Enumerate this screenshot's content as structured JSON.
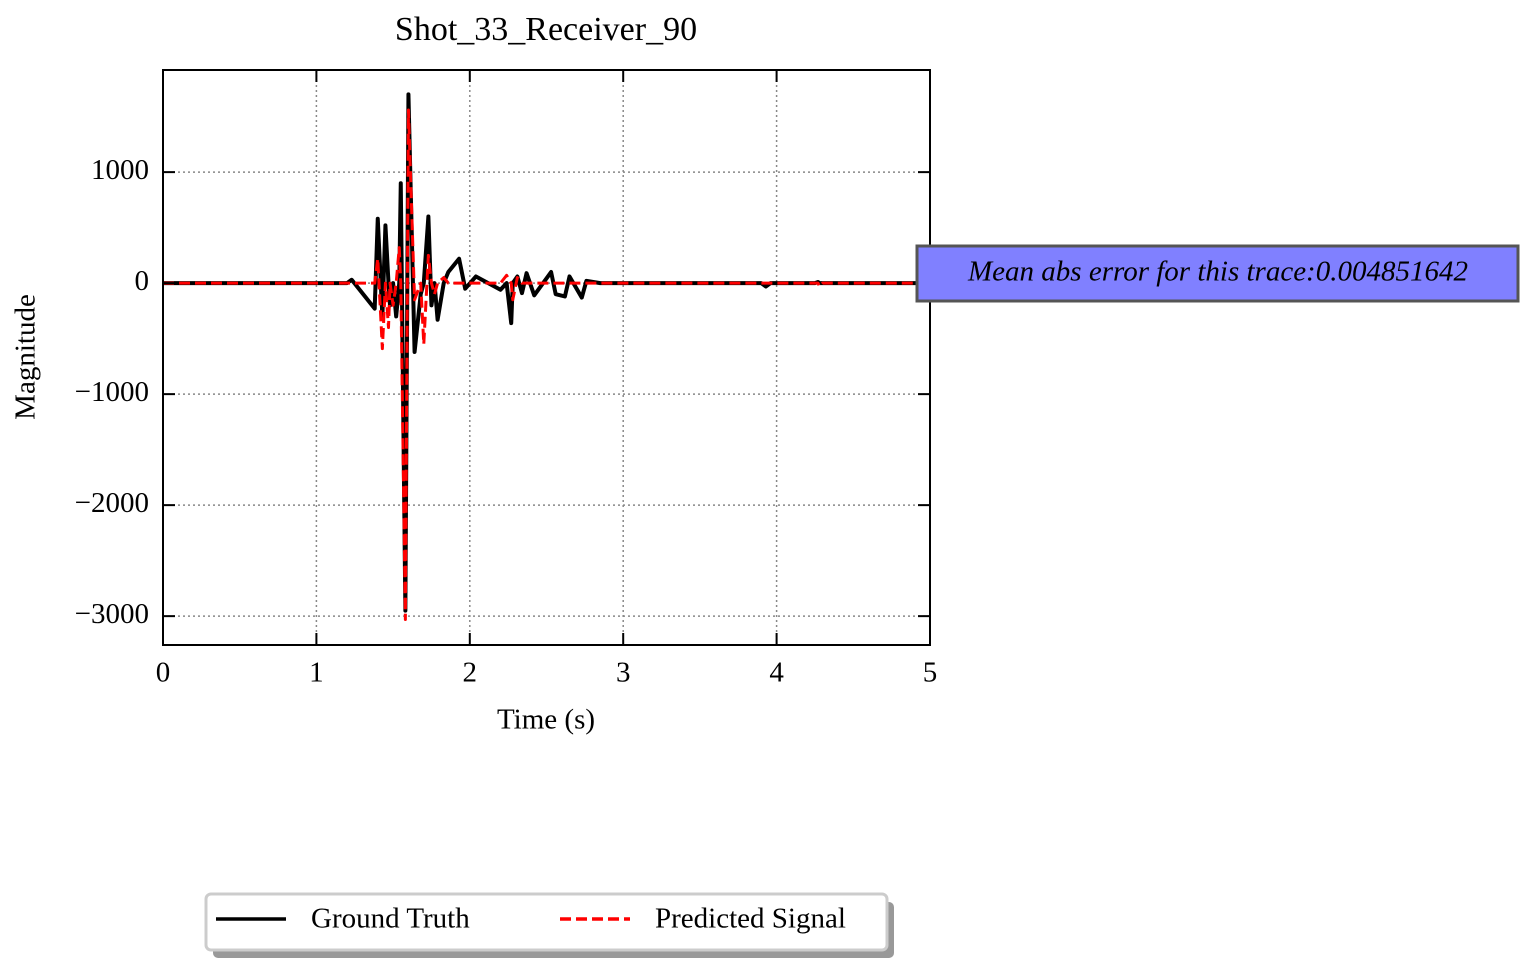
{
  "chart_data": {
    "type": "line",
    "title": "Shot_33_Receiver_90",
    "x_label": "Time (s)",
    "y_label": "Magnitude",
    "annotation": "Mean abs error for this trace:0.004851642",
    "x": [
      0,
      1.2,
      1.23,
      1.38,
      1.4,
      1.43,
      1.45,
      1.47,
      1.48,
      1.5,
      1.52,
      1.54,
      1.55,
      1.58,
      1.6,
      1.64,
      1.68,
      1.7,
      1.73,
      1.75,
      1.77,
      1.79,
      1.83,
      1.86,
      1.93,
      1.97,
      2.04,
      2.2,
      2.24,
      2.27,
      2.28,
      2.31,
      2.34,
      2.37,
      2.42,
      2.53,
      2.56,
      2.62,
      2.65,
      2.73,
      2.76,
      2.85,
      3.9,
      3.93,
      3.96,
      4.25,
      4.27,
      4.28,
      4.3,
      5
    ],
    "series": [
      {
        "name": "Ground Truth",
        "color": "#000000",
        "linestyle": "solid",
        "values": [
          0,
          0,
          30,
          -230,
          580,
          -300,
          520,
          0,
          -200,
          0,
          -300,
          0,
          900,
          -2950,
          1700,
          -620,
          -100,
          0,
          600,
          -200,
          0,
          -330,
          0,
          100,
          220,
          -50,
          60,
          -60,
          0,
          -360,
          0,
          60,
          -90,
          90,
          -110,
          100,
          -100,
          -120,
          60,
          -130,
          20,
          0,
          0,
          -30,
          0,
          0,
          10,
          0,
          0,
          0
        ]
      },
      {
        "name": "Predicted Signal",
        "color": "#ff0000",
        "linestyle": "dashed",
        "values": [
          0,
          0,
          0,
          0,
          220,
          -590,
          0,
          -400,
          0,
          -200,
          0,
          320,
          0,
          -3030,
          1560,
          -150,
          0,
          -550,
          250,
          0,
          -100,
          0,
          50,
          0,
          0,
          0,
          0,
          0,
          70,
          0,
          -150,
          50,
          0,
          0,
          0,
          0,
          0,
          0,
          0,
          0,
          0,
          0,
          0,
          0,
          0,
          0,
          0,
          -30,
          0,
          0
        ]
      }
    ],
    "xlim": [
      0,
      5
    ],
    "xticks": [
      0,
      1,
      2,
      3,
      4,
      5
    ],
    "ylim": [
      -3260,
      1920
    ],
    "yticks": [
      {
        "value": -3000,
        "label": "−3000"
      },
      {
        "value": -2000,
        "label": "−2000"
      },
      {
        "value": -1000,
        "label": "−1000"
      },
      0,
      1000
    ],
    "grid": true,
    "legend_position": "bottom"
  }
}
